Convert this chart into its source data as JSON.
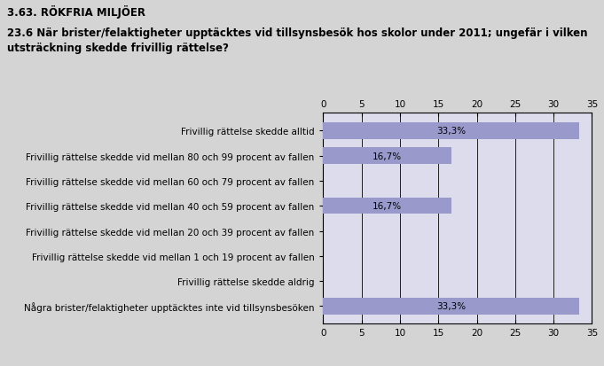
{
  "title_top": "3.63. RÖKFRIA MILJÖER",
  "subtitle": "23.6 När brister/felaktigheter upptäcktes vid tillsynsbesök hos skolor under 2011; ungefär i vilken\nutsträckning skedde frivillig rättelse?",
  "categories": [
    "Några brister/felaktigheter upptäcktes inte vid tillsynsbesöken",
    "Frivillig rättelse skedde aldrig",
    "Frivillig rättelse skedde vid mellan 1 och 19 procent av fallen",
    "Frivillig rättelse skedde vid mellan 20 och 39 procent av fallen",
    "Frivillig rättelse skedde vid mellan 40 och 59 procent av fallen",
    "Frivillig rättelse skedde vid mellan 60 och 79 procent av fallen",
    "Frivillig rättelse skedde vid mellan 80 och 99 procent av fallen",
    "Frivillig rättelse skedde alltid"
  ],
  "values": [
    33.3,
    0,
    0,
    0,
    16.7,
    0,
    16.7,
    33.3
  ],
  "labels": [
    "33,3%",
    "",
    "",
    "",
    "16,7%",
    "",
    "16,7%",
    "33,3%"
  ],
  "bar_color": "#9999cc",
  "background_color": "#d4d4d4",
  "plot_bg_color": "#dcdcec",
  "xlim": [
    0,
    35
  ],
  "xticks": [
    0,
    5,
    10,
    15,
    20,
    25,
    30,
    35
  ],
  "title_fontsize": 8.5,
  "subtitle_fontsize": 8.5,
  "label_fontsize": 7.5,
  "tick_fontsize": 7.5,
  "bar_label_fontsize": 7.5
}
